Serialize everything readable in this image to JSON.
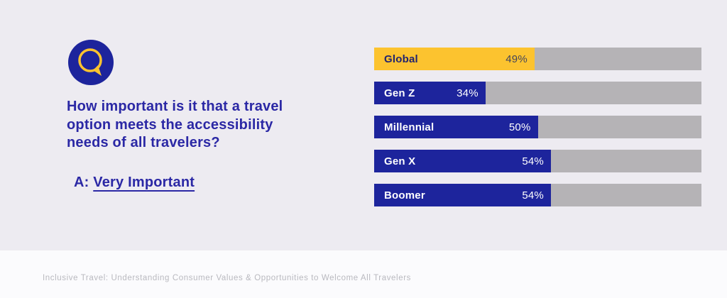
{
  "page": {
    "background_color": "#edebf1",
    "footer_background_color": "#fbfbfd"
  },
  "qa": {
    "icon": "speech-bubble-icon",
    "icon_circle_color": "#1d249c",
    "icon_glyph_color": "#fcc32f",
    "question_lines": [
      "How important is it that a travel",
      "option meets the accessibility",
      "needs of all travelers?"
    ],
    "answer_prefix": "A: ",
    "answer_text": "Very Important",
    "text_color": "#2b28a5"
  },
  "chart_data": {
    "type": "bar",
    "orientation": "horizontal",
    "title": "",
    "xlabel": "",
    "ylabel": "",
    "categories": [
      "Global",
      "Gen Z",
      "Millennial",
      "Gen X",
      "Boomer"
    ],
    "values": [
      49,
      34,
      50,
      54,
      54
    ],
    "value_labels": [
      "49%",
      "34%",
      "50%",
      "54%",
      "54%"
    ],
    "xlim": [
      0,
      100
    ],
    "grid": false,
    "legend": false,
    "track_color": "#b5b3b6",
    "bar_colors": [
      "#fcc32f",
      "#1d249c",
      "#1d249c",
      "#1d249c",
      "#1d249c"
    ],
    "label_colors": [
      "#23246e",
      "#ffffff",
      "#ffffff",
      "#ffffff",
      "#ffffff"
    ],
    "value_label_colors": [
      "#45465a",
      "#ffffff",
      "#ffffff",
      "#ffffff",
      "#ffffff"
    ]
  },
  "footer": {
    "source_text": "Inclusive Travel: Understanding Consumer Values & Opportunities to Welcome All Travelers",
    "text_color": "#b9b9bf"
  }
}
